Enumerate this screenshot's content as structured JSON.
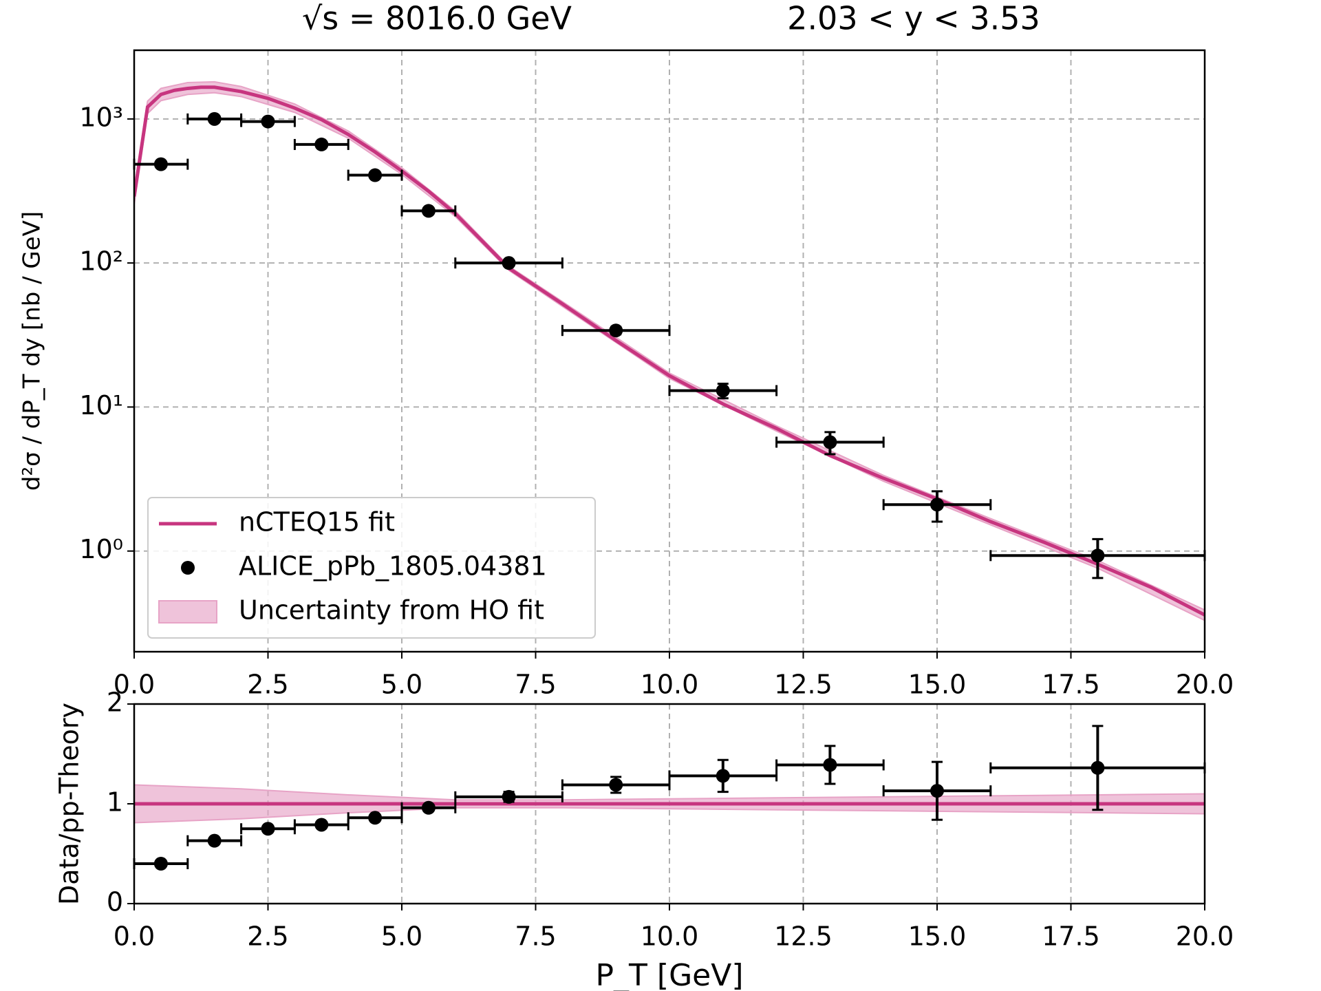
{
  "chart_data": [
    {
      "type": "line",
      "title": "√s = 8016.0 GeV",
      "subtitle": "2.03 < y < 3.53",
      "y_label": "d²σ / dP_T dy [nb / GeV]",
      "log_y": true,
      "grid": true,
      "legend": "lower left",
      "xlim": [
        0,
        20
      ],
      "xticks": [
        {
          "value": 0,
          "label": "0.0"
        },
        {
          "value": 2.5,
          "label": "2.5"
        },
        {
          "value": 5,
          "label": "5.0"
        },
        {
          "value": 7.5,
          "label": "7.5"
        },
        {
          "value": 10,
          "label": "10.0"
        },
        {
          "value": 12.5,
          "label": "12.5"
        },
        {
          "value": 15,
          "label": "15.0"
        },
        {
          "value": 17.5,
          "label": "17.5"
        },
        {
          "value": 20,
          "label": "20.0"
        }
      ],
      "ylim": [
        0.2,
        3000
      ],
      "yticks": [
        {
          "value": 1,
          "label": "10⁰"
        },
        {
          "value": 10,
          "label": "10¹"
        },
        {
          "value": 100,
          "label": "10²"
        },
        {
          "value": 1000,
          "label": "10³"
        }
      ],
      "series": [
        {
          "name": "Uncertainty from HO fit",
          "type": "band",
          "color": "#e7a3c6",
          "x": [
            0,
            0.25,
            0.5,
            1,
            1.5,
            2,
            3,
            4,
            5,
            6,
            7,
            8,
            10,
            12,
            14,
            16,
            18,
            20
          ],
          "lower": [
            255,
            1090,
            1340,
            1480,
            1520,
            1430,
            1110,
            735,
            412,
            210,
            89,
            50,
            15.8,
            6.8,
            3.05,
            1.52,
            0.76,
            0.33
          ],
          "upper": [
            325,
            1330,
            1630,
            1790,
            1810,
            1680,
            1270,
            825,
            458,
            230,
            95,
            54,
            17.2,
            7.4,
            3.35,
            1.68,
            0.86,
            0.39
          ]
        },
        {
          "name": "nCTEQ15 fit",
          "type": "line",
          "color": "#c7357f",
          "x": [
            0,
            0.25,
            0.5,
            0.75,
            1,
            1.25,
            1.5,
            2,
            2.5,
            3,
            3.5,
            4,
            4.5,
            5,
            5.5,
            6,
            7,
            8,
            9,
            10,
            11,
            12,
            13,
            14,
            15,
            16,
            17,
            18,
            19,
            20
          ],
          "values": [
            290,
            1210,
            1480,
            1580,
            1630,
            1660,
            1660,
            1550,
            1390,
            1190,
            990,
            780,
            590,
            435,
            315,
            220,
            92,
            52,
            29,
            16.5,
            10.5,
            7.1,
            4.6,
            3.2,
            2.3,
            1.6,
            1.15,
            0.81,
            0.56,
            0.36
          ]
        },
        {
          "name": "ALICE_pPb_1805.04381",
          "type": "errorbar",
          "color": "#000000",
          "x": [
            0.5,
            1.5,
            2.5,
            3.5,
            4.5,
            5.5,
            7,
            9,
            11,
            13,
            15,
            18
          ],
          "xerr": [
            0.5,
            0.5,
            0.5,
            0.5,
            0.5,
            0.5,
            1,
            1,
            1,
            1,
            1,
            2
          ],
          "values": [
            485,
            1000,
            960,
            665,
            407,
            230,
            100,
            34,
            13,
            5.7,
            2.1,
            0.93
          ],
          "yerr": [
            20,
            40,
            40,
            25,
            15,
            9,
            4,
            2,
            1.5,
            1,
            0.5,
            0.28
          ]
        }
      ]
    },
    {
      "type": "line",
      "x_label": "P_T [GeV]",
      "y_label": "Data/pp-Theory",
      "log_y": false,
      "grid": true,
      "xlim": [
        0,
        20
      ],
      "xticks": [
        {
          "value": 0,
          "label": "0.0"
        },
        {
          "value": 2.5,
          "label": "2.5"
        },
        {
          "value": 5,
          "label": "5.0"
        },
        {
          "value": 7.5,
          "label": "7.5"
        },
        {
          "value": 10,
          "label": "10.0"
        },
        {
          "value": 12.5,
          "label": "12.5"
        },
        {
          "value": 15,
          "label": "15.0"
        },
        {
          "value": 17.5,
          "label": "17.5"
        },
        {
          "value": 20,
          "label": "20.0"
        }
      ],
      "ylim": [
        0,
        2
      ],
      "yticks": [
        0,
        1,
        2
      ],
      "series": [
        {
          "type": "band",
          "color": "#e7a3c6",
          "x": [
            0,
            2,
            4,
            6,
            8,
            10,
            12,
            14,
            16,
            18,
            20
          ],
          "lower": [
            0.81,
            0.85,
            0.91,
            0.96,
            0.96,
            0.95,
            0.94,
            0.93,
            0.92,
            0.91,
            0.9
          ],
          "upper": [
            1.19,
            1.15,
            1.09,
            1.04,
            1.04,
            1.05,
            1.06,
            1.07,
            1.08,
            1.09,
            1.1
          ]
        },
        {
          "type": "line",
          "color": "#c7357f",
          "x": [
            0,
            20
          ],
          "values": [
            1,
            1
          ]
        },
        {
          "type": "errorbar",
          "color": "#000000",
          "x": [
            0.5,
            1.5,
            2.5,
            3.5,
            4.5,
            5.5,
            7,
            9,
            11,
            13,
            15,
            18
          ],
          "xerr": [
            0.5,
            0.5,
            0.5,
            0.5,
            0.5,
            0.5,
            1,
            1,
            1,
            1,
            1,
            2
          ],
          "values": [
            0.4,
            0.63,
            0.75,
            0.79,
            0.86,
            0.96,
            1.07,
            1.19,
            1.28,
            1.39,
            1.13,
            1.36
          ],
          "yerr": [
            0.02,
            0.02,
            0.02,
            0.02,
            0.02,
            0.02,
            0.05,
            0.08,
            0.16,
            0.19,
            0.29,
            0.42
          ]
        }
      ]
    }
  ]
}
